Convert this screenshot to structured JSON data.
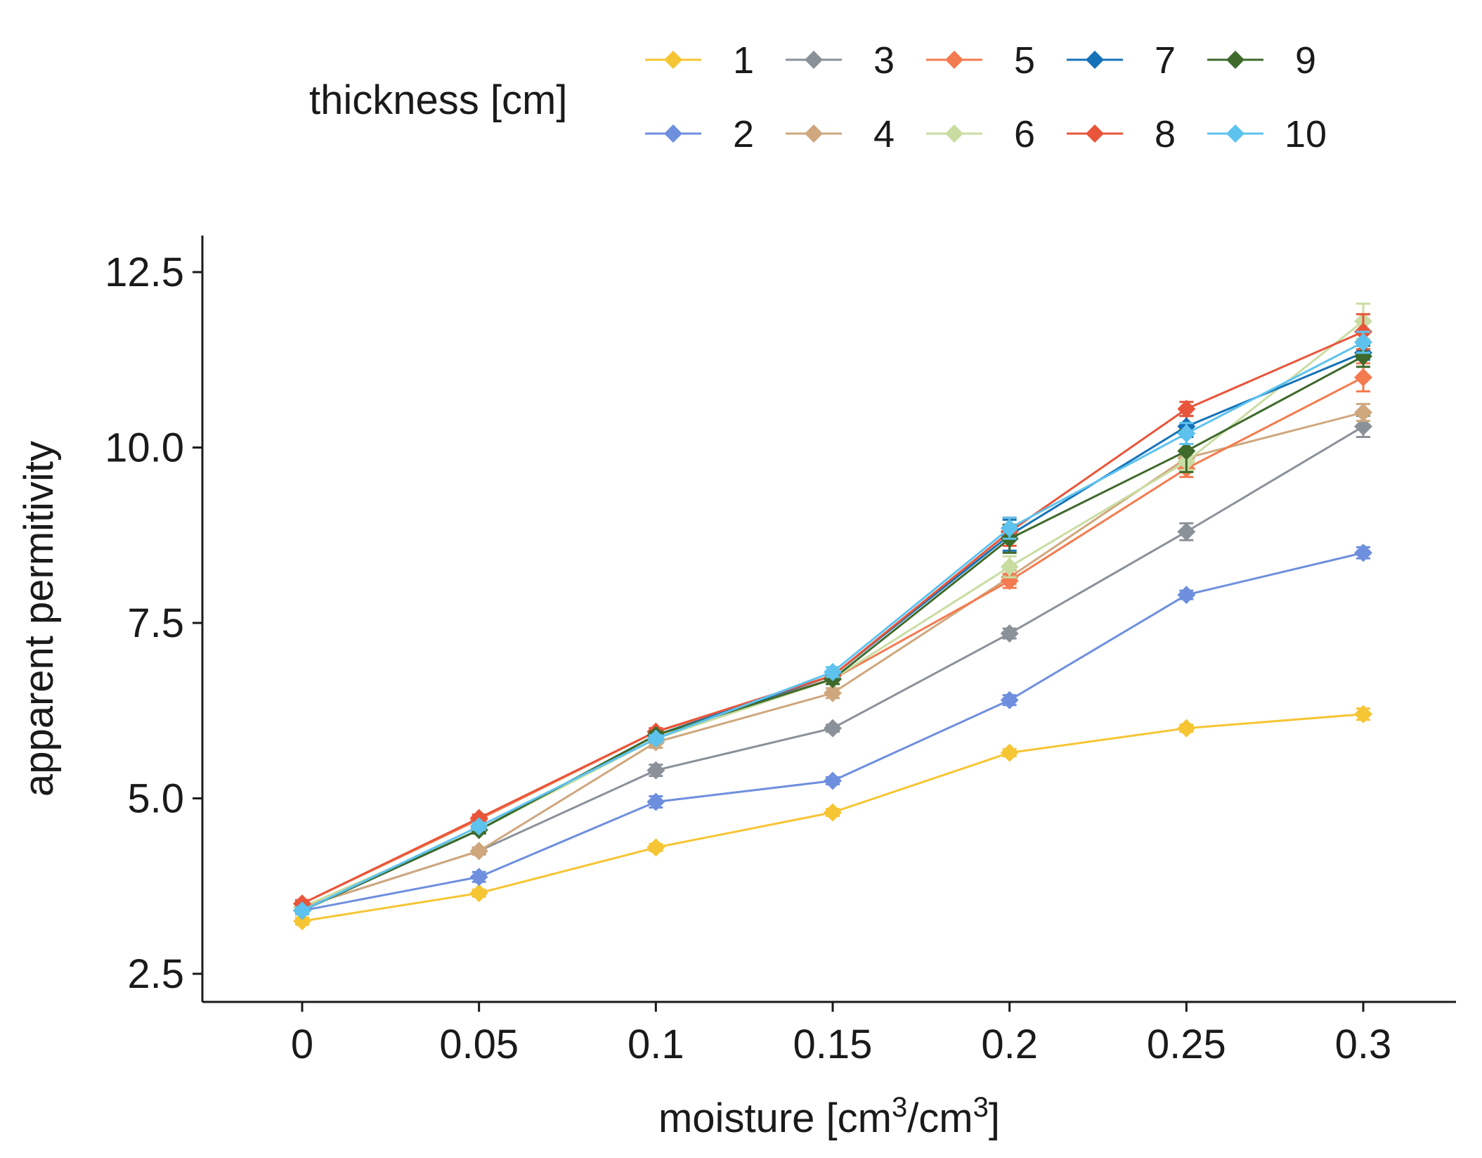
{
  "chart_data": {
    "type": "line",
    "title": "",
    "xlabel": "moisture [cm3/cm3]",
    "xlabel_parts": {
      "base": "moisture [cm",
      "sup1": "3",
      "mid": "/cm",
      "sup2": "3",
      "end": "]"
    },
    "ylabel": "apparent permitivity",
    "x": [
      0,
      0.05,
      0.1,
      0.15,
      0.2,
      0.25,
      0.3
    ],
    "x_tick_labels": [
      "0",
      "0.05",
      "0.1",
      "0.15",
      "0.2",
      "0.25",
      "0.3"
    ],
    "y_ticks": [
      2.5,
      5.0,
      7.5,
      10.0,
      12.5
    ],
    "y_tick_labels": [
      "2.5",
      "5.0",
      "7.5",
      "10.0",
      "12.5"
    ],
    "xlim": [
      -0.029,
      0.3
    ],
    "ylim": [
      2.0,
      13.0
    ],
    "grid": false,
    "legend_title": "thickness [cm]",
    "legend_position": "top",
    "series": [
      {
        "name": "1",
        "color": "#F6C533",
        "values": [
          3.25,
          3.65,
          4.3,
          4.8,
          5.65,
          6.0,
          6.2
        ],
        "err": [
          0.05,
          0.05,
          0.05,
          0.05,
          0.05,
          0.05,
          0.08
        ]
      },
      {
        "name": "2",
        "color": "#6E8FDE",
        "values": [
          3.4,
          3.88,
          4.95,
          5.25,
          6.4,
          7.9,
          8.5
        ],
        "err": [
          0.05,
          0.07,
          0.08,
          0.05,
          0.07,
          0.06,
          0.08
        ]
      },
      {
        "name": "3",
        "color": "#8A9199",
        "values": [
          3.45,
          4.25,
          5.4,
          6.0,
          7.35,
          8.8,
          10.3
        ],
        "err": [
          0.05,
          0.05,
          0.08,
          0.05,
          0.07,
          0.12,
          0.15
        ]
      },
      {
        "name": "4",
        "color": "#CFA77D",
        "values": [
          3.45,
          4.25,
          5.8,
          6.5,
          8.15,
          9.85,
          10.5
        ],
        "err": [
          0.05,
          0.05,
          0.08,
          0.07,
          0.1,
          0.12,
          0.12
        ]
      },
      {
        "name": "5",
        "color": "#F47B4F",
        "values": [
          3.5,
          4.7,
          5.95,
          6.7,
          8.1,
          9.7,
          11.0
        ],
        "err": [
          0.05,
          0.05,
          0.05,
          0.07,
          0.1,
          0.12,
          0.2
        ]
      },
      {
        "name": "6",
        "color": "#C9DDA2",
        "values": [
          3.45,
          4.55,
          5.85,
          6.7,
          8.3,
          9.8,
          11.8
        ],
        "err": [
          0.05,
          0.05,
          0.05,
          0.07,
          0.15,
          0.12,
          0.25
        ]
      },
      {
        "name": "7",
        "color": "#1672B8",
        "values": [
          3.4,
          4.55,
          5.9,
          6.75,
          8.75,
          10.3,
          11.35
        ],
        "err": [
          0.05,
          0.05,
          0.05,
          0.07,
          0.22,
          0.15,
          0.1
        ]
      },
      {
        "name": "8",
        "color": "#E8553A",
        "values": [
          3.5,
          4.72,
          5.95,
          6.75,
          8.8,
          10.55,
          11.65
        ],
        "err": [
          0.05,
          0.05,
          0.05,
          0.07,
          0.2,
          0.1,
          0.25
        ]
      },
      {
        "name": "9",
        "color": "#3E6A2B",
        "values": [
          3.4,
          4.55,
          5.9,
          6.7,
          8.7,
          9.95,
          11.3
        ],
        "err": [
          0.05,
          0.05,
          0.05,
          0.07,
          0.2,
          0.3,
          0.15
        ]
      },
      {
        "name": "10",
        "color": "#5DC2EE",
        "values": [
          3.4,
          4.6,
          5.85,
          6.8,
          8.85,
          10.2,
          11.5
        ],
        "err": [
          0.05,
          0.05,
          0.05,
          0.07,
          0.15,
          0.15,
          0.15
        ]
      }
    ]
  }
}
